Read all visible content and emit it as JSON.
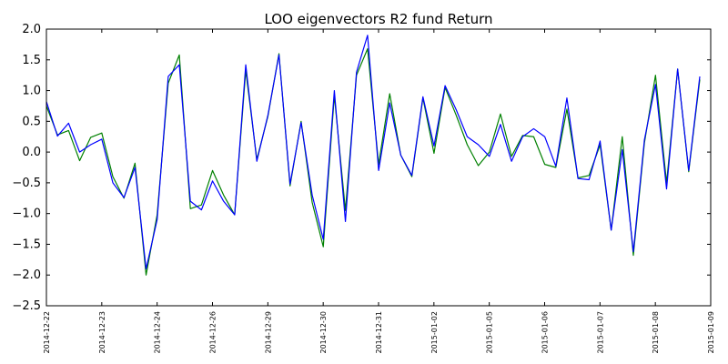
{
  "chart_data": {
    "type": "line",
    "title": "LOO eigenvectors R2 fund Return",
    "xlabel": "",
    "ylabel": "",
    "ylim": [
      -2.5,
      2.0
    ],
    "yticks": [
      -2.5,
      -2.0,
      -1.5,
      -1.0,
      -0.5,
      0.0,
      0.5,
      1.0,
      1.5,
      2.0
    ],
    "ytick_labels": [
      "−2.5",
      "−2.0",
      "−1.5",
      "−1.0",
      "−0.5",
      "0.0",
      "0.5",
      "1.0",
      "1.5",
      "2.0"
    ],
    "xtick_labels": [
      "2014-12-22",
      "2014-12-23",
      "2014-12-24",
      "2014-12-26",
      "2014-12-29",
      "2014-12-30",
      "2014-12-31",
      "2015-01-02",
      "2015-01-05",
      "2015-01-06",
      "2015-01-07",
      "2015-01-08",
      "2015-01-09"
    ],
    "grid": false,
    "legend": "none",
    "series": [
      {
        "color": "#0000ff",
        "values": [
          0.82,
          0.26,
          0.47,
          0.0,
          0.12,
          0.21,
          -0.5,
          -0.74,
          -0.25,
          -1.9,
          -1.1,
          1.23,
          1.42,
          -0.8,
          -0.94,
          -0.47,
          -0.8,
          -1.02,
          1.42,
          -0.15,
          0.6,
          1.58,
          -0.52,
          0.48,
          -0.7,
          -1.42,
          1.0,
          -1.13,
          1.3,
          1.9,
          -0.3,
          0.8,
          -0.05,
          -0.38,
          0.9,
          0.1,
          1.08,
          0.69,
          0.25,
          0.12,
          -0.07,
          0.45,
          -0.15,
          0.25,
          0.38,
          0.25,
          -0.23,
          0.88,
          -0.43,
          -0.45,
          0.18,
          -1.27,
          0.04,
          -1.62,
          0.2,
          1.1,
          -0.6,
          1.35,
          -0.3,
          1.23
        ]
      },
      {
        "color": "#008000",
        "values": [
          0.75,
          0.28,
          0.35,
          -0.14,
          0.24,
          0.31,
          -0.4,
          -0.75,
          -0.18,
          -2.0,
          -1.02,
          1.12,
          1.58,
          -0.92,
          -0.86,
          -0.3,
          -0.7,
          -1.02,
          1.33,
          -0.12,
          0.58,
          1.6,
          -0.55,
          0.5,
          -0.82,
          -1.54,
          0.92,
          -0.95,
          1.25,
          1.68,
          -0.2,
          0.95,
          -0.05,
          -0.4,
          0.88,
          -0.02,
          1.05,
          0.6,
          0.12,
          -0.22,
          0.0,
          0.62,
          -0.07,
          0.27,
          0.25,
          -0.2,
          -0.25,
          0.7,
          -0.42,
          -0.38,
          0.12,
          -1.27,
          0.25,
          -1.68,
          0.15,
          1.25,
          -0.5,
          1.35,
          -0.32,
          1.18
        ]
      }
    ]
  }
}
